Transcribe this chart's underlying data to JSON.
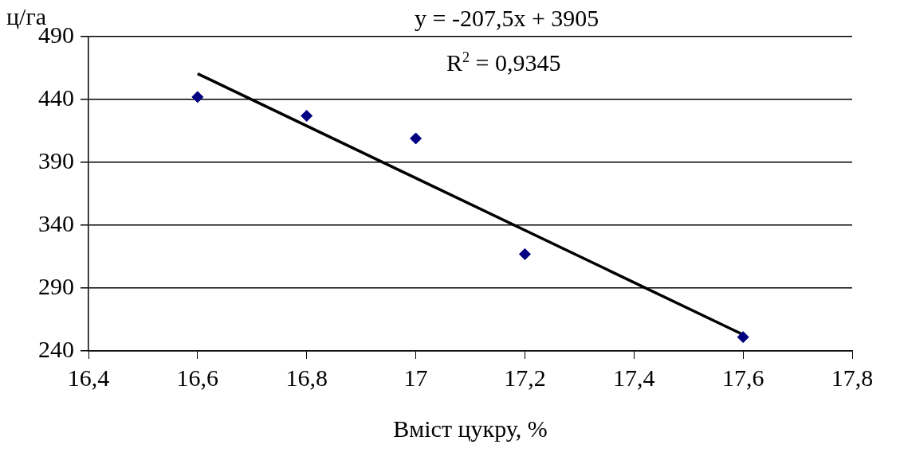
{
  "chart_data": {
    "type": "scatter",
    "xlabel": "Вміст цукру, %",
    "ylabel": "ц/га",
    "annotations": [
      "y = -207,5x + 3905",
      "R$^{2}$ = 0,9345"
    ],
    "series": [
      {
        "color": "#000080",
        "x": [
          16.6,
          16.8,
          17.0,
          17.2,
          17.6
        ],
        "values": [
          442,
          427,
          409,
          317,
          251
        ]
      },
      {
        "type": "line",
        "color": "#000000",
        "x": [
          16.6,
          17.6
        ],
        "values": [
          460.5,
          253
        ],
        "marker": "none"
      }
    ],
    "xlim": [
      16.4,
      17.8
    ],
    "xticks": [
      {
        "value": 16.4,
        "label": "16,4"
      },
      {
        "value": 16.6,
        "label": "16,6"
      },
      {
        "value": 16.8,
        "label": "16,8"
      },
      17,
      {
        "value": 17.2,
        "label": "17,2"
      },
      {
        "value": 17.4,
        "label": "17,4"
      },
      {
        "value": 17.6,
        "label": "17,6"
      },
      {
        "value": 17.8,
        "label": "17,8"
      }
    ],
    "ylim": [
      240,
      490
    ],
    "yticks": [
      240,
      290,
      340,
      390,
      440,
      490
    ],
    "grid": "y",
    "legend": false,
    "marker": "diamond",
    "line_style": "solid"
  }
}
